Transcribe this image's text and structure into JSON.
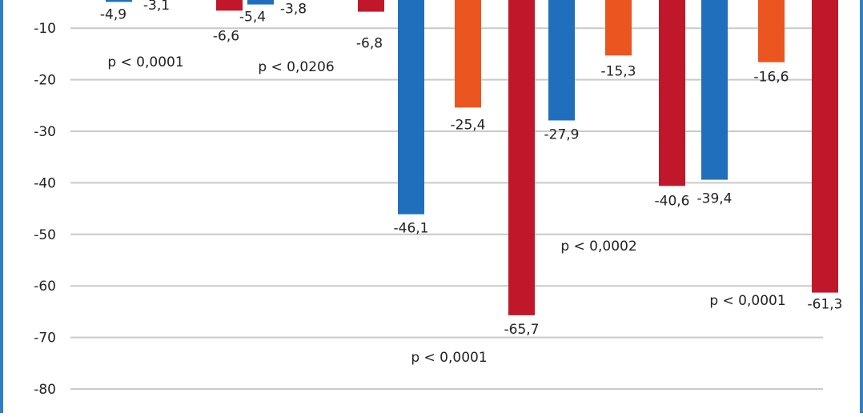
{
  "chart_data": {
    "type": "bar",
    "categories": [
      "",
      "",
      "",
      "",
      ""
    ],
    "series": [
      {
        "color": "#1f6fbd",
        "values": [
          -4.9,
          -5.4,
          -46.1,
          -27.9,
          -39.4
        ]
      },
      {
        "color": "#ea5520",
        "values": [
          -3.1,
          -3.8,
          -25.4,
          -15.3,
          -16.6
        ]
      },
      {
        "color": "#c0182a",
        "values": [
          -6.6,
          -6.8,
          -65.7,
          -40.6,
          -61.3
        ]
      }
    ],
    "value_labels": [
      [
        "-4,9",
        "-5,4",
        "-46,1",
        "-27,9",
        "-39,4"
      ],
      [
        "-3,1",
        "-3,8",
        "-25,4",
        "-15,3",
        "-16,6"
      ],
      [
        "-6,6",
        "-6,8",
        "-65,7",
        "-40,6",
        "-61,3"
      ]
    ],
    "p_values": [
      "p < 0,0001",
      "p < 0,0206",
      "p < 0,0001",
      "p < 0,0002",
      "p < 0,0001"
    ],
    "y_ticks": [
      -10,
      -20,
      -30,
      -40,
      -50,
      -60,
      -70,
      -80
    ],
    "y_tick_labels": [
      "-10",
      "-20",
      "-30",
      "-40",
      "-50",
      "-60",
      "-70",
      "-80"
    ],
    "ylim": [
      -80,
      0
    ],
    "grid": true,
    "frame_color": "#2f7fc4"
  }
}
